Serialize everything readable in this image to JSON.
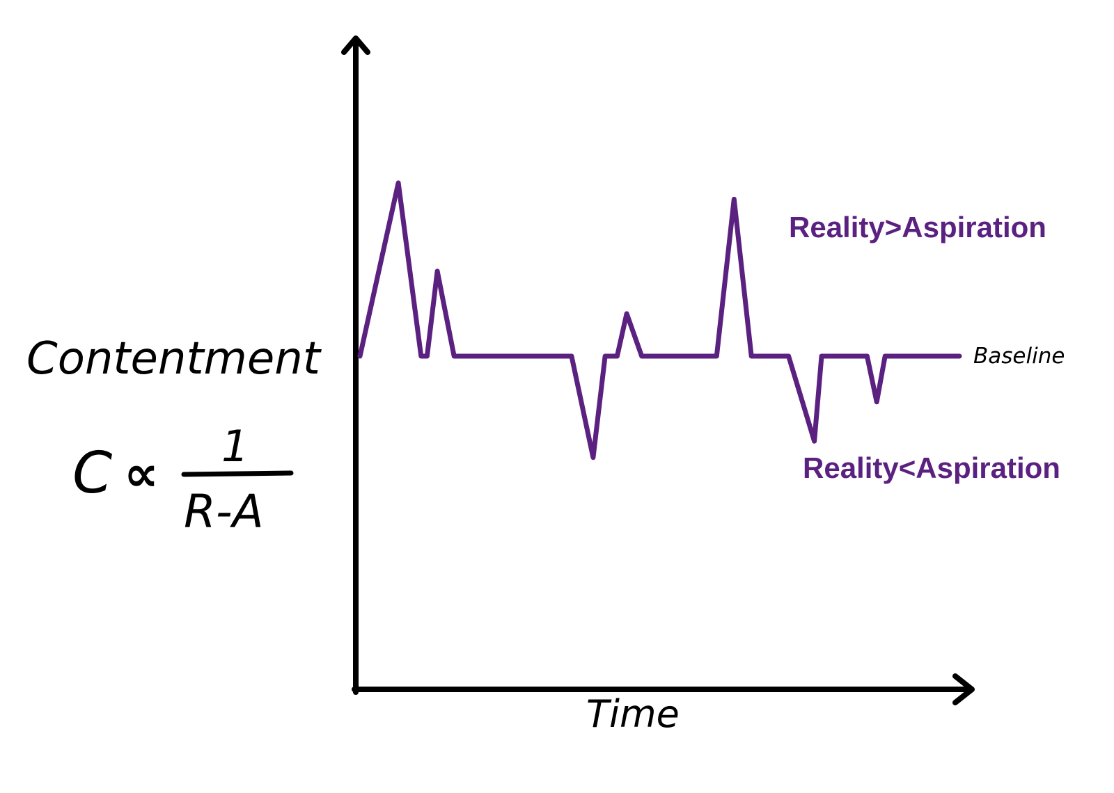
{
  "chart_data": {
    "type": "line",
    "xlabel": "Time",
    "ylabel": "Contentment",
    "formula": {
      "lhs": "C",
      "symbol": "∝",
      "numerator": "1",
      "denominator": "R-A"
    },
    "baseline_label": "Baseline",
    "annotations": {
      "above": "Reality>Aspiration",
      "below": "Reality<Aspiration"
    },
    "xlim": [
      0,
      100
    ],
    "ylim": [
      -100,
      100
    ],
    "series": [
      {
        "x": [
          0,
          6.4,
          10.2,
          11.2,
          12.9,
          15.7,
          35.3,
          38.9,
          40.9,
          42.9,
          44.5,
          47.0,
          59.5,
          62.4,
          65.3,
          71.5,
          75.8,
          77.0,
          84.6,
          86.2,
          87.6,
          100
        ],
        "y": [
          0,
          53,
          0,
          0,
          26,
          0,
          0,
          -31,
          0,
          0,
          13,
          0,
          0,
          48,
          0,
          0,
          -26,
          0,
          0,
          -14,
          0,
          0
        ]
      }
    ],
    "colors": {
      "series": "#5b2180",
      "axis": "#000000",
      "annotation": "#5b2180"
    }
  }
}
